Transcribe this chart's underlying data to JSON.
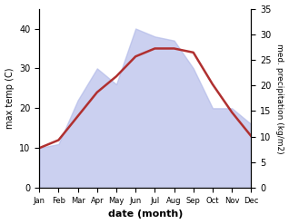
{
  "months": [
    "Jan",
    "Feb",
    "Mar",
    "Apr",
    "May",
    "Jun",
    "Jul",
    "Aug",
    "Sep",
    "Oct",
    "Nov",
    "Dec"
  ],
  "month_indices": [
    0,
    1,
    2,
    3,
    4,
    5,
    6,
    7,
    8,
    9,
    10,
    11
  ],
  "temp": [
    10,
    12,
    18,
    24,
    28,
    33,
    35,
    35,
    34,
    26,
    19,
    13
  ],
  "precip": [
    10,
    11,
    22,
    30,
    26,
    40,
    38,
    37,
    30,
    20,
    20,
    16
  ],
  "temp_color": "#b03030",
  "precip_color": "#b0b8e8",
  "precip_fill_alpha": 0.65,
  "left_ylim": [
    0,
    45
  ],
  "right_ylim": [
    0,
    35
  ],
  "left_yticks": [
    0,
    10,
    20,
    30,
    40
  ],
  "right_yticks": [
    0,
    5,
    10,
    15,
    20,
    25,
    30,
    35
  ],
  "xlabel": "date (month)",
  "ylabel_left": "max temp (C)",
  "ylabel_right": "med. precipitation (kg/m2)",
  "line_width": 1.8,
  "bg_color": "#ffffff"
}
